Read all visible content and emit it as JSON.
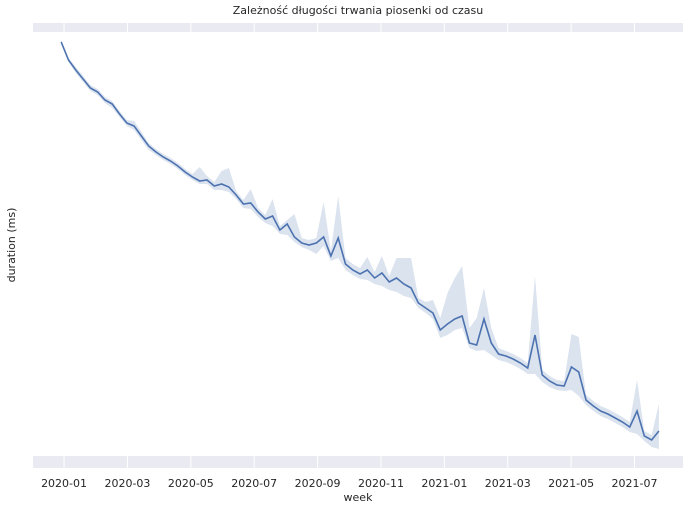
{
  "chart_data": {
    "type": "line",
    "title": "Zależność długości trwania piosenki od czasu",
    "xlabel": "week",
    "ylabel": "duration (ms)",
    "color": "#4c72b0",
    "x": [
      -0.09,
      0.14,
      0.37,
      0.6,
      0.83,
      1.06,
      1.29,
      1.52,
      1.75,
      1.98,
      2.21,
      2.44,
      2.67,
      2.9,
      3.13,
      3.36,
      3.59,
      3.82,
      4.05,
      4.28,
      4.51,
      4.74,
      4.97,
      5.2,
      5.43,
      5.66,
      5.89,
      6.12,
      6.35,
      6.58,
      6.81,
      7.04,
      7.27,
      7.5,
      7.73,
      7.96,
      8.19,
      8.42,
      8.65,
      8.88,
      9.11,
      9.34,
      9.57,
      9.8,
      10.03,
      10.26,
      10.49,
      10.72,
      10.95,
      11.18,
      11.41,
      11.64,
      11.87,
      12.1,
      12.33,
      12.56,
      12.79,
      13.02,
      13.25,
      13.48,
      13.71,
      13.94,
      14.17,
      14.4,
      14.63,
      14.86,
      15.09,
      15.32,
      15.55,
      15.78,
      16.01,
      16.24,
      16.47,
      16.7,
      16.93,
      17.16,
      17.39,
      17.62,
      17.85,
      18.08,
      18.31,
      18.54,
      18.77
    ],
    "values": [
      426,
      408,
      398,
      389,
      380,
      376,
      368,
      364,
      354,
      345,
      342,
      332,
      322,
      316,
      311,
      307,
      302,
      296,
      291,
      287,
      288,
      282,
      284,
      281,
      273,
      264,
      265,
      256,
      249,
      252,
      238,
      244,
      231,
      225,
      223,
      225,
      231,
      212,
      230,
      204,
      198,
      194,
      198,
      190,
      195,
      186,
      190,
      184,
      180,
      165,
      160,
      155,
      138,
      144,
      149,
      152,
      125,
      123,
      149,
      125,
      114,
      112,
      109,
      105,
      100,
      133,
      93,
      87,
      83,
      82,
      101,
      96,
      68,
      62,
      57,
      54,
      50,
      46,
      41,
      57,
      32,
      28,
      37
    ],
    "ci_upper": [
      428,
      410,
      401,
      392,
      383,
      379,
      371,
      367,
      357,
      348,
      347,
      336,
      325,
      319,
      314,
      310,
      305,
      299,
      294,
      301,
      292,
      286,
      297,
      300,
      277,
      268,
      279,
      260,
      253,
      269,
      242,
      248,
      254,
      230,
      228,
      230,
      266,
      217,
      272,
      210,
      204,
      200,
      211,
      196,
      212,
      192,
      210,
      210,
      210,
      170,
      166,
      168,
      150,
      175,
      190,
      202,
      140,
      150,
      180,
      140,
      120,
      117,
      114,
      110,
      105,
      192,
      98,
      92,
      88,
      87,
      134,
      131,
      73,
      67,
      62,
      59,
      55,
      51,
      46,
      88,
      37,
      33,
      64
    ],
    "ci_lower": [
      424,
      406,
      395,
      386,
      377,
      373,
      365,
      360,
      351,
      342,
      338,
      328,
      318,
      313,
      308,
      304,
      299,
      293,
      288,
      284,
      284,
      278,
      278,
      276,
      269,
      260,
      259,
      251,
      245,
      242,
      234,
      233,
      226,
      221,
      218,
      214,
      222,
      207,
      210,
      198,
      193,
      189,
      188,
      184,
      182,
      178,
      176,
      172,
      170,
      160,
      155,
      149,
      130,
      133,
      138,
      140,
      120,
      117,
      118,
      113,
      108,
      106,
      103,
      99,
      94,
      94,
      86,
      81,
      78,
      77,
      78,
      72,
      63,
      57,
      52,
      49,
      45,
      41,
      36,
      34,
      27,
      21,
      19
    ],
    "xlim": [
      -0.98,
      19.53
    ],
    "ylim": [
      0,
      445
    ],
    "xticks": [
      {
        "value": 0,
        "label": "2020-01"
      },
      {
        "value": 2,
        "label": "2020-03"
      },
      {
        "value": 4,
        "label": "2020-05"
      },
      {
        "value": 6,
        "label": "2020-07"
      },
      {
        "value": 8,
        "label": "2020-09"
      },
      {
        "value": 10,
        "label": "2020-11"
      },
      {
        "value": 12,
        "label": "2021-01"
      },
      {
        "value": 14,
        "label": "2021-03"
      },
      {
        "value": 16,
        "label": "2021-05"
      },
      {
        "value": 18,
        "label": "2021-07"
      }
    ],
    "grid": true
  }
}
